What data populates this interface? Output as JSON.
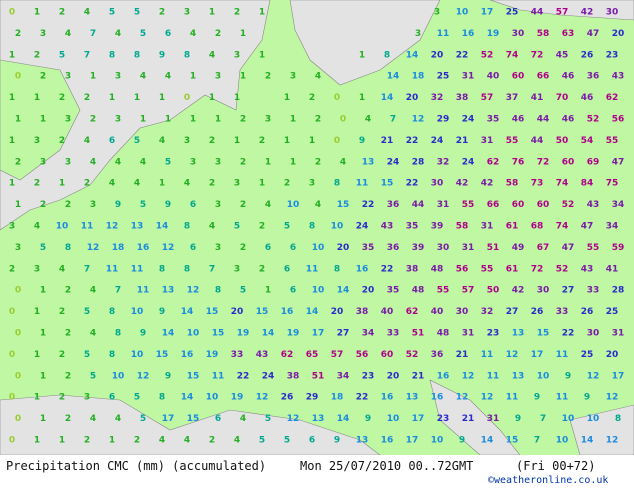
{
  "map": {
    "rows": [
      [
        0,
        1,
        2,
        4,
        5,
        5,
        2,
        3,
        1,
        2,
        1,
        null,
        null,
        null,
        null,
        null,
        null,
        3,
        10,
        17,
        25,
        44,
        57,
        42,
        30
      ],
      [
        2,
        3,
        4,
        7,
        4,
        5,
        6,
        4,
        2,
        1,
        null,
        null,
        null,
        null,
        null,
        null,
        3,
        11,
        16,
        19,
        30,
        58,
        63,
        47,
        20
      ],
      [
        1,
        2,
        5,
        7,
        8,
        8,
        9,
        8,
        4,
        3,
        1,
        null,
        null,
        null,
        1,
        8,
        14,
        20,
        22,
        52,
        74,
        72,
        45,
        26,
        23
      ],
      [
        0,
        2,
        3,
        1,
        3,
        4,
        4,
        1,
        3,
        1,
        2,
        3,
        4,
        null,
        null,
        14,
        18,
        25,
        31,
        40,
        60,
        66,
        46,
        36,
        43
      ],
      [
        1,
        1,
        2,
        2,
        1,
        1,
        1,
        0,
        1,
        1,
        null,
        1,
        2,
        0,
        1,
        14,
        20,
        32,
        38,
        57,
        37,
        41,
        70,
        46,
        62
      ],
      [
        1,
        1,
        3,
        2,
        3,
        1,
        1,
        1,
        1,
        2,
        3,
        1,
        2,
        0,
        4,
        7,
        12,
        29,
        24,
        35,
        46,
        44,
        46,
        52,
        56
      ],
      [
        1,
        3,
        2,
        4,
        6,
        5,
        4,
        3,
        2,
        1,
        2,
        1,
        1,
        0,
        9,
        21,
        22,
        24,
        21,
        31,
        55,
        44,
        50,
        54,
        55
      ],
      [
        2,
        3,
        3,
        4,
        4,
        4,
        5,
        3,
        3,
        2,
        1,
        1,
        2,
        4,
        13,
        24,
        28,
        32,
        24,
        62,
        76,
        72,
        60,
        69,
        47
      ],
      [
        1,
        2,
        1,
        2,
        4,
        4,
        1,
        4,
        2,
        3,
        1,
        2,
        3,
        8,
        11,
        15,
        22,
        30,
        42,
        42,
        58,
        73,
        74,
        84,
        75
      ],
      [
        1,
        2,
        2,
        3,
        9,
        5,
        9,
        6,
        3,
        2,
        4,
        10,
        4,
        15,
        22,
        36,
        44,
        31,
        55,
        66,
        60,
        60,
        52,
        43,
        34
      ],
      [
        3,
        4,
        10,
        11,
        12,
        13,
        14,
        8,
        4,
        5,
        2,
        5,
        8,
        10,
        24,
        43,
        35,
        39,
        58,
        31,
        61,
        68,
        74,
        47,
        34
      ],
      [
        3,
        5,
        8,
        12,
        18,
        16,
        12,
        6,
        3,
        2,
        6,
        6,
        10,
        20,
        35,
        36,
        39,
        30,
        31,
        51,
        49,
        67,
        47,
        55,
        59
      ],
      [
        2,
        3,
        4,
        7,
        11,
        11,
        8,
        8,
        7,
        3,
        2,
        6,
        11,
        8,
        16,
        22,
        38,
        48,
        56,
        55,
        61,
        72,
        52,
        43,
        41
      ],
      [
        0,
        1,
        2,
        4,
        7,
        11,
        13,
        12,
        8,
        5,
        1,
        6,
        10,
        14,
        20,
        35,
        48,
        55,
        57,
        50,
        42,
        30,
        27,
        33,
        28
      ],
      [
        0,
        1,
        2,
        5,
        8,
        10,
        9,
        14,
        15,
        20,
        15,
        16,
        14,
        20,
        38,
        40,
        62,
        40,
        30,
        32,
        27,
        26,
        33,
        26,
        25
      ],
      [
        0,
        1,
        2,
        4,
        8,
        9,
        14,
        10,
        15,
        19,
        14,
        19,
        17,
        27,
        34,
        33,
        51,
        48,
        31,
        23,
        13,
        15,
        22,
        30,
        31
      ],
      [
        0,
        1,
        2,
        5,
        8,
        10,
        15,
        16,
        19,
        33,
        43,
        62,
        65,
        57,
        56,
        60,
        52,
        36,
        21,
        11,
        12,
        17,
        11,
        25,
        20
      ],
      [
        0,
        1,
        2,
        5,
        10,
        12,
        9,
        15,
        11,
        22,
        24,
        38,
        51,
        34,
        23,
        20,
        21,
        16,
        12,
        11,
        13,
        10,
        9,
        12,
        17
      ],
      [
        0,
        1,
        2,
        3,
        6,
        5,
        8,
        14,
        10,
        19,
        12,
        26,
        29,
        18,
        22,
        16,
        13,
        16,
        12,
        12,
        11,
        9,
        11,
        9,
        12
      ],
      [
        0,
        1,
        2,
        4,
        4,
        5,
        17,
        15,
        6,
        4,
        5,
        12,
        13,
        14,
        9,
        10,
        17,
        23,
        21,
        31,
        9,
        7,
        10,
        10,
        8
      ],
      [
        0,
        1,
        1,
        2,
        1,
        2,
        4,
        4,
        2,
        4,
        5,
        5,
        6,
        9,
        13,
        16,
        17,
        10,
        9,
        14,
        15,
        7,
        10,
        14,
        12
      ]
    ],
    "color_scale": [
      {
        "min": 0,
        "color": "#9acd32"
      },
      {
        "min": 1,
        "color": "#22b022"
      },
      {
        "min": 5,
        "color": "#00a890"
      },
      {
        "min": 10,
        "color": "#1a8ce0"
      },
      {
        "min": 20,
        "color": "#2a2acc"
      },
      {
        "min": 30,
        "color": "#7a1aa8"
      },
      {
        "min": 50,
        "color": "#b0008a"
      }
    ]
  },
  "footer": {
    "title": "Precipitation CMC (mm) (accumulated)",
    "date": "Mon 25/07/2010 00..72GMT",
    "run": "(Fri 00+72)",
    "credit": "©weatheronline.co.uk"
  }
}
